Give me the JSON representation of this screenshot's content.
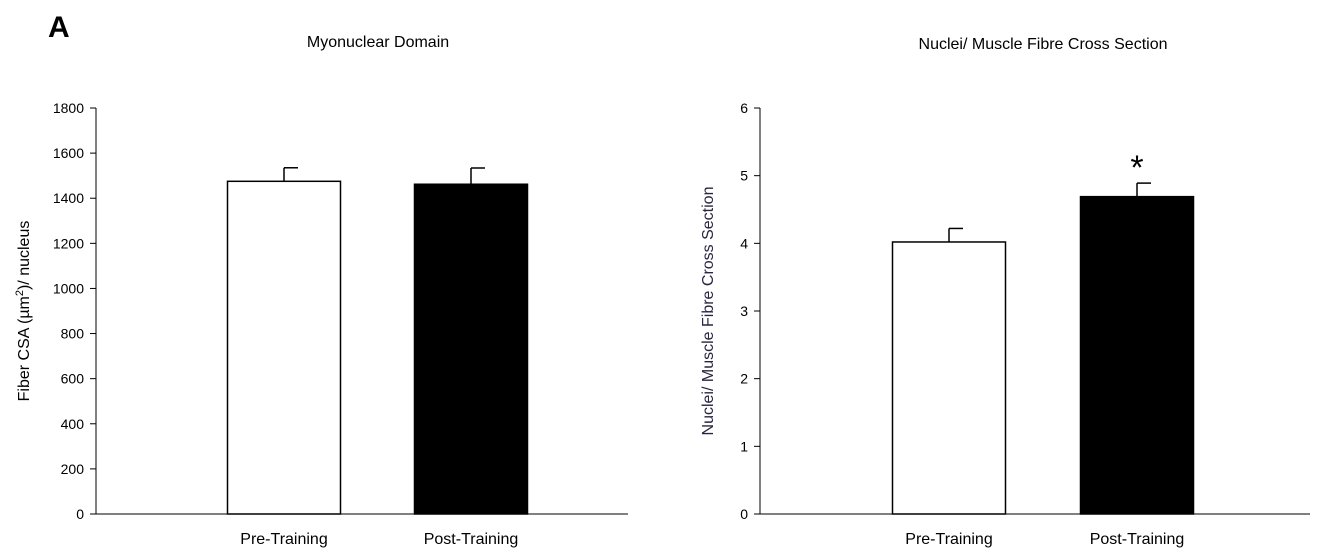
{
  "panel_label": "A",
  "chart_data": [
    {
      "type": "bar",
      "title": "Myonuclear Domain",
      "xlabel": "",
      "ylabel_parts": [
        "Fiber CSA (µm",
        "2",
        ")/ nucleus"
      ],
      "ylabel_color": "#000000",
      "categories": [
        "Pre-Training",
        "Post-Training"
      ],
      "values": [
        1475,
        1462
      ],
      "errors": [
        60,
        72
      ],
      "bar_fills": [
        "#ffffff",
        "#000000"
      ],
      "ylim": [
        0,
        1800
      ],
      "yticks": [
        0,
        200,
        400,
        600,
        800,
        1000,
        1200,
        1400,
        1600,
        1800
      ],
      "annotations": [
        "",
        ""
      ],
      "grid": false
    },
    {
      "type": "bar",
      "title": "Nuclei/ Muscle Fibre Cross Section",
      "xlabel": "",
      "ylabel_parts": [
        "Nuclei/ Muscle Fibre Cross Section"
      ],
      "ylabel_color": "#2a2440",
      "categories": [
        "Pre-Training",
        "Post-Training"
      ],
      "values": [
        4.02,
        4.69
      ],
      "errors": [
        0.2,
        0.2
      ],
      "bar_fills": [
        "#ffffff",
        "#000000"
      ],
      "ylim": [
        0,
        6
      ],
      "yticks": [
        0,
        1,
        2,
        3,
        4,
        5,
        6
      ],
      "annotations": [
        "",
        "*"
      ],
      "grid": false
    }
  ]
}
